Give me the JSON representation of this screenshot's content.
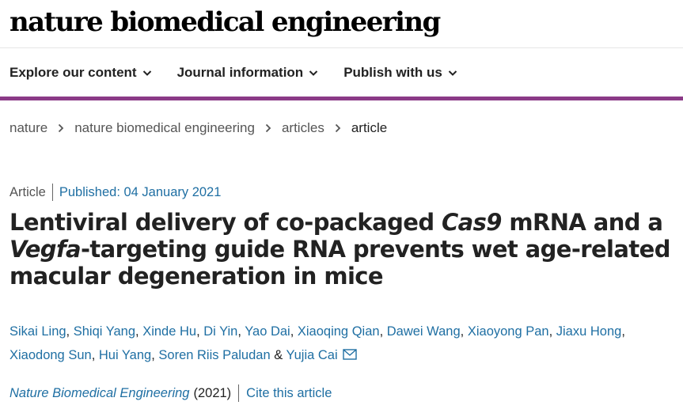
{
  "masthead": {
    "logo_text": "nature biomedical engineering"
  },
  "nav": {
    "items": [
      {
        "label": "Explore our content"
      },
      {
        "label": "Journal information"
      },
      {
        "label": "Publish with us"
      }
    ]
  },
  "colors": {
    "accent_bar": "#8b3a87",
    "link": "#1f6fa3",
    "text": "#222222"
  },
  "breadcrumb": {
    "items": [
      {
        "label": "nature"
      },
      {
        "label": "nature biomedical engineering"
      },
      {
        "label": "articles"
      },
      {
        "label": "article"
      }
    ]
  },
  "article": {
    "type": "Article",
    "published": "Published: 04 January 2021",
    "title": {
      "part1": "Lentiviral delivery of co-packaged ",
      "italic1": "Cas9",
      "part2": " mRNA and a ",
      "italic2": "Vegfa",
      "part3": "-targeting guide RNA prevents wet age-related macular degeneration in mice"
    },
    "authors": [
      "Sikai Ling",
      "Shiqi Yang",
      "Xinde Hu",
      "Di Yin",
      "Yao Dai",
      "Xiaoqing Qian",
      "Dawei Wang",
      "Xiaoyong Pan",
      "Jiaxu Hong",
      "Xiaodong Sun",
      "Hui Yang",
      "Soren Riis Paludan",
      "Yujia Cai"
    ],
    "author_separator": ", ",
    "author_last_joiner": " & ",
    "corresponding_icon": "mail-icon",
    "journal": "Nature Biomedical Engineering",
    "year": "(2021)",
    "cite_label": "Cite this article"
  }
}
